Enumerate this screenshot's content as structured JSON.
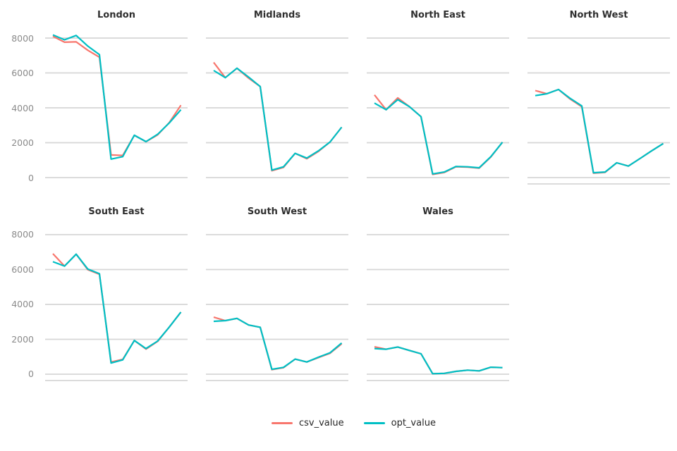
{
  "chart_data": {
    "type": "line",
    "description": "Small-multiples (faceted) line chart comparing two series per UK region",
    "x_labels_visible": false,
    "x_point_count": 12,
    "yticks": [
      0,
      2000,
      4000,
      6000,
      8000
    ],
    "ylim": [
      0,
      8000
    ],
    "grid": true,
    "gridline_color": "#d6d6d6",
    "axis_text_color": "#8a8a8a",
    "title_color": "#2f2f2f",
    "series_names": [
      "csv_value",
      "opt_value"
    ],
    "colors": {
      "csv_value": "#F8766D",
      "opt_value": "#00BFC4"
    },
    "legend": {
      "position": "bottom",
      "entries": [
        {
          "label": "csv_value",
          "color": "#F8766D"
        },
        {
          "label": "opt_value",
          "color": "#00BFC4"
        }
      ]
    },
    "panels": [
      {
        "title": "London",
        "row": 0,
        "col": 0,
        "bottom_axis": false,
        "csv_value": [
          8100,
          7760,
          7780,
          7300,
          6900,
          1300,
          1270,
          2420,
          2060,
          2450,
          3150,
          4150
        ],
        "opt_value": [
          8180,
          7900,
          8150,
          7540,
          7050,
          1060,
          1200,
          2430,
          2060,
          2480,
          3130,
          3890
        ]
      },
      {
        "title": "Midlands",
        "row": 0,
        "col": 1,
        "bottom_axis": false,
        "csv_value": [
          6600,
          5730,
          6270,
          5700,
          5220,
          390,
          580,
          1390,
          1080,
          1500,
          2040,
          2890
        ],
        "opt_value": [
          6140,
          5730,
          6270,
          5760,
          5220,
          430,
          620,
          1390,
          1120,
          1530,
          2040,
          2890
        ]
      },
      {
        "title": "North East",
        "row": 0,
        "col": 2,
        "bottom_axis": false,
        "csv_value": [
          4740,
          3890,
          4570,
          4070,
          3490,
          180,
          290,
          620,
          600,
          540,
          1180,
          2030
        ],
        "opt_value": [
          4270,
          3890,
          4470,
          4070,
          3490,
          210,
          320,
          640,
          620,
          560,
          1200,
          2030
        ]
      },
      {
        "title": "North West",
        "row": 0,
        "col": 3,
        "bottom_axis": true,
        "csv_value": [
          4990,
          4810,
          5050,
          4500,
          4060,
          250,
          300,
          850,
          660,
          1090,
          1530,
          1950
        ],
        "opt_value": [
          4700,
          4810,
          5050,
          4540,
          4110,
          280,
          320,
          850,
          660,
          1090,
          1530,
          1950
        ]
      },
      {
        "title": "South East",
        "row": 1,
        "col": 0,
        "bottom_axis": true,
        "csv_value": [
          6910,
          6200,
          6880,
          5990,
          5730,
          700,
          850,
          1930,
          1440,
          1880,
          2700,
          3560
        ],
        "opt_value": [
          6450,
          6200,
          6880,
          6030,
          5760,
          640,
          820,
          1930,
          1470,
          1900,
          2700,
          3560
        ]
      },
      {
        "title": "South West",
        "row": 1,
        "col": 1,
        "bottom_axis": true,
        "csv_value": [
          3270,
          3070,
          3200,
          2820,
          2690,
          260,
          370,
          865,
          700,
          950,
          1200,
          1740
        ],
        "opt_value": [
          3030,
          3070,
          3200,
          2820,
          2690,
          280,
          390,
          865,
          700,
          975,
          1230,
          1790
        ]
      },
      {
        "title": "Wales",
        "row": 1,
        "col": 2,
        "bottom_axis": true,
        "csv_value": [
          1570,
          1430,
          1560,
          1360,
          1170,
          30,
          50,
          160,
          230,
          190,
          400,
          375
        ],
        "opt_value": [
          1470,
          1430,
          1560,
          1360,
          1170,
          30,
          50,
          160,
          230,
          190,
          400,
          375
        ]
      }
    ]
  }
}
